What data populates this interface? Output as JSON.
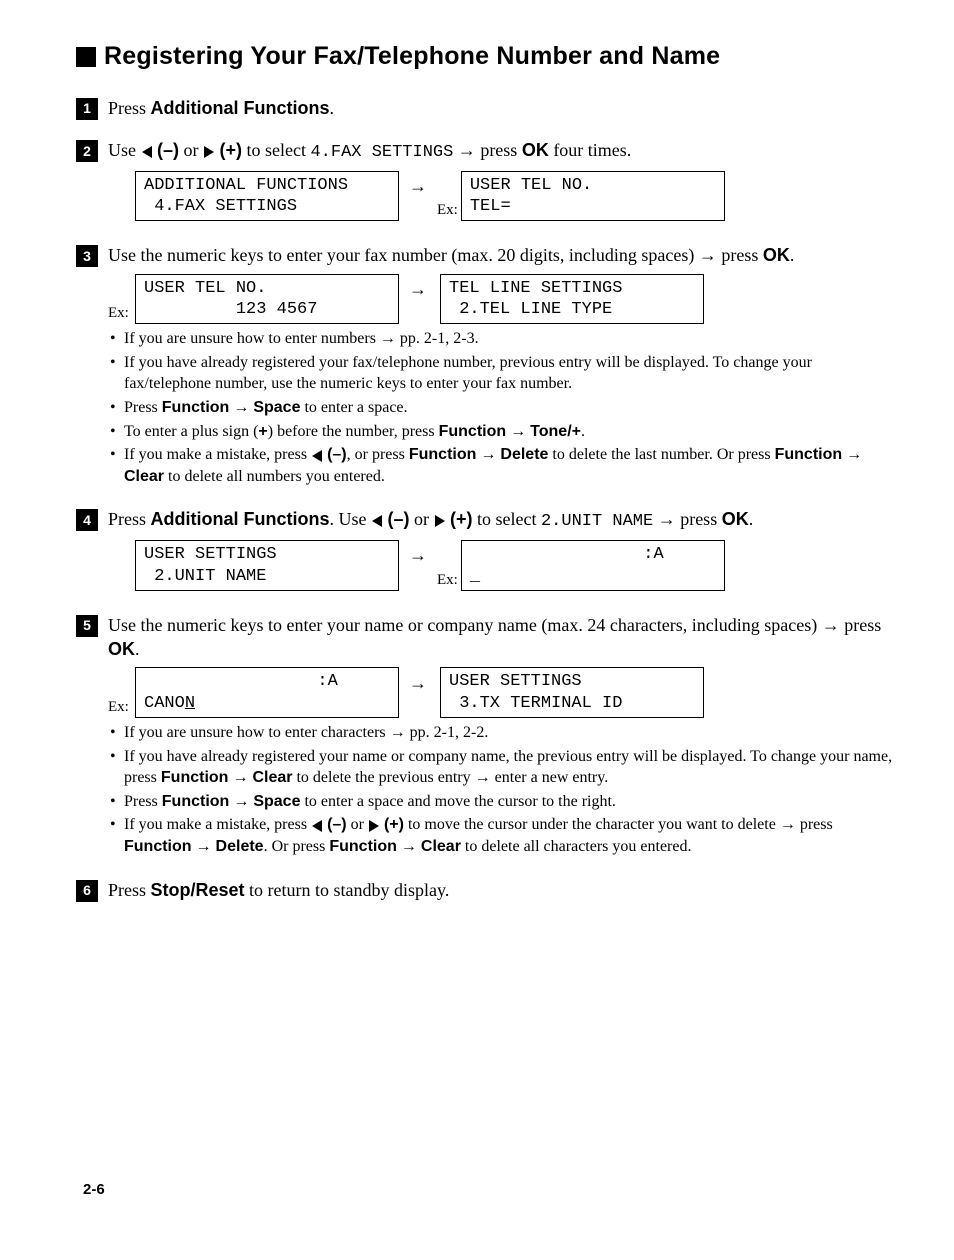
{
  "header": {
    "title": "Registering Your Fax/Telephone Number and Name"
  },
  "steps": [
    {
      "num": "1",
      "text_parts": [
        {
          "t": "Press ",
          "cls": ""
        },
        {
          "t": "Additional Functions",
          "cls": "bold-sans"
        },
        {
          "t": ".",
          "cls": ""
        }
      ]
    },
    {
      "num": "2",
      "text_html_key": "step2_text",
      "displays": {
        "ex_label_left": "",
        "ex_label_right": "Ex:",
        "left": "ADDITIONAL FUNCTIONS\n 4.FAX SETTINGS",
        "right": "USER TEL NO.\nTEL="
      }
    },
    {
      "num": "3",
      "text_html_key": "step3_text",
      "displays": {
        "ex_label_left": "Ex:",
        "ex_label_right": "",
        "left": "USER TEL NO.\n         123 4567",
        "right": "TEL LINE SETTINGS\n 2.TEL LINE TYPE"
      },
      "notes_key": "step3_notes"
    },
    {
      "num": "4",
      "text_html_key": "step4_text",
      "displays": {
        "ex_label_left": "",
        "ex_label_right": "Ex:",
        "left": "USER SETTINGS\n 2.UNIT NAME",
        "right_html_key": "step4_right_disp"
      }
    },
    {
      "num": "5",
      "text_html_key": "step5_text",
      "displays": {
        "ex_label_left": "Ex:",
        "ex_label_right": "",
        "left_html_key": "step5_left_disp",
        "right": "USER SETTINGS\n 3.TX TERMINAL ID"
      },
      "notes_key": "step5_notes"
    },
    {
      "num": "6",
      "text_parts": [
        {
          "t": "Press ",
          "cls": ""
        },
        {
          "t": "Stop/Reset",
          "cls": "bold-sans"
        },
        {
          "t": " to return to standby display.",
          "cls": ""
        }
      ]
    }
  ],
  "page_number": "2-6",
  "strings": {
    "step2_text": "Use <span class='tri-l'></span> <span class='bold-sans'>(–)</span> or <span class='tri-r'></span> <span class='bold-sans'>(+)</span> to select <span class='mono'>4.FAX SETTINGS</span> <span class='arrow'>→</span> press <span class='bold-sans'>OK</span> four times.",
    "step3_text": "Use the numeric keys to enter your fax number (max. 20 digits, including spaces) <span class='arrow'>→</span> press <span class='bold-sans'>OK</span>.",
    "step4_text": "Press <span class='bold-sans'>Additional Functions</span>. Use <span class='tri-l'></span> <span class='bold-sans'>(–)</span> or <span class='tri-r'></span> <span class='bold-sans'>(+)</span> to select <span class='mono'>2.UNIT NAME</span> <span class='arrow'>→</span> press <span class='bold-sans'>OK</span>.",
    "step5_text": "Use the numeric keys to enter your name or company name (max. 24 characters, including spaces) <span class='arrow'>→</span> press <span class='bold-sans'>OK</span>.",
    "step4_right_disp": "                 :A\n_",
    "step5_left_disp": "                 :A\nCANO<span class='cursor-underline'>N</span>",
    "step3_notes": [
      "If you are unsure how to enter numbers <span class='arrow'>→</span> pp. 2-1, 2-3.",
      "If you have already registered your fax/telephone number, previous entry will be displayed. To change your fax/telephone number, use the numeric keys to enter your fax number.",
      "Press <span class='bold-sans'>Function</span> <span class='arrow'>→</span> <span class='bold-sans'>Space</span> to enter a space.",
      "To enter a plus sign (<span class='bold-sans'>+</span>) before the number, press <span class='bold-sans'>Function</span> <span class='arrow'>→</span> <span class='bold-sans'>Tone/+</span>.",
      "If you make a mistake, press <span class='tri-l'></span> <span class='bold-sans'>(–)</span>, or press <span class='bold-sans'>Function</span> <span class='arrow'>→</span> <span class='bold-sans'>Delete</span> to delete the last number. Or press <span class='bold-sans'>Function</span> <span class='arrow'>→</span> <span class='bold-sans'>Clear</span> to delete all numbers you entered."
    ],
    "step5_notes": [
      "If you are unsure how to enter characters <span class='arrow'>→</span> pp. 2-1, 2-2.",
      "If you have already registered your name or company name, the previous entry will be displayed. To change your name, press <span class='bold-sans'>Function</span> <span class='arrow'>→</span> <span class='bold-sans'>Clear</span> to delete the previous entry <span class='arrow'>→</span> enter a new entry.",
      "Press <span class='bold-sans'>Function</span> <span class='arrow'>→</span> <span class='bold-sans'>Space</span> to enter a space and move the cursor to the right.",
      "If you make a mistake, press <span class='tri-l'></span> <span class='bold-sans'>(–)</span> or <span class='tri-r'></span> <span class='bold-sans'>(+)</span> to move the cursor under the character you want to delete <span class='arrow'>→</span> press <span class='bold-sans'>Function</span> <span class='arrow'>→</span> <span class='bold-sans'>Delete</span>. Or press <span class='bold-sans'>Function</span> <span class='arrow'>→</span> <span class='bold-sans'>Clear</span> to delete all characters you entered."
    ]
  }
}
